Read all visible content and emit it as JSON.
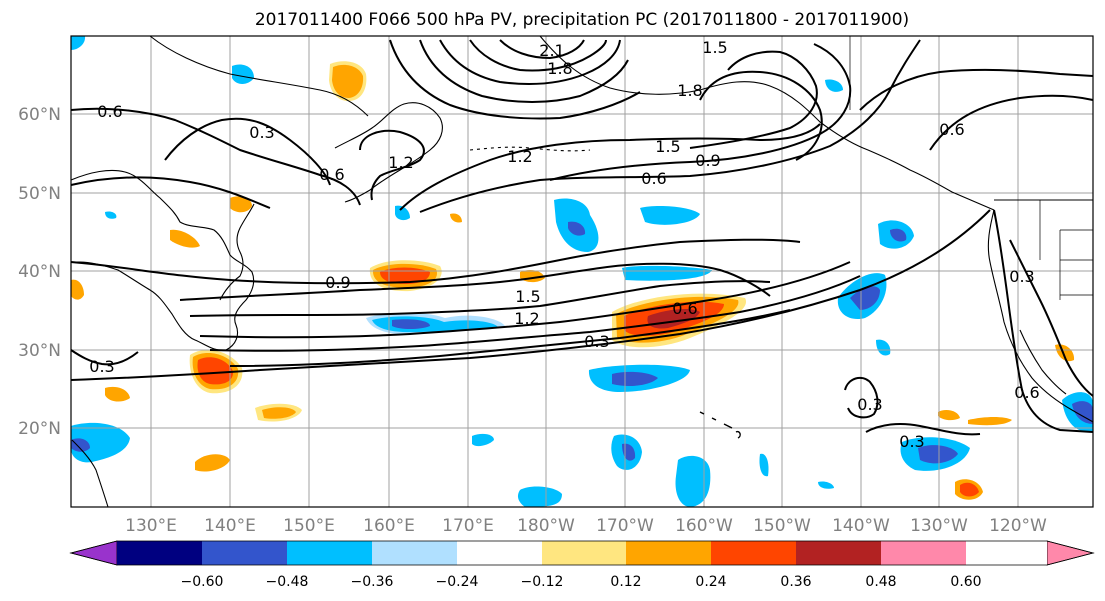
{
  "title": "2017011400 F066 500 hPa PV, precipitation PC (2017011800 - 2017011900)",
  "map": {
    "lat_labels": [
      "60°N",
      "50°N",
      "40°N",
      "30°N",
      "20°N"
    ],
    "lon_labels": [
      "130°E",
      "140°E",
      "150°E",
      "160°E",
      "170°E",
      "180°W",
      "170°W",
      "160°W",
      "150°W",
      "140°W",
      "130°W",
      "120°W"
    ],
    "contour_labels": [
      "0.6",
      "0.3",
      "0.6",
      "1.2",
      "2.1",
      "1.8",
      "1.5",
      "1.8",
      "1.2",
      "1.5",
      "0.9",
      "0.6",
      "0.6",
      "0.9",
      "1.5",
      "1.2",
      "0.3",
      "0.6",
      "0.3",
      "0.3",
      "0.3",
      "0.3",
      "0.6"
    ]
  },
  "colorbar": {
    "ticks": [
      "−0.60",
      "−0.48",
      "−0.36",
      "−0.24",
      "−0.12",
      "0.12",
      "0.24",
      "0.36",
      "0.48",
      "0.60"
    ],
    "colors": [
      "#9933cc",
      "#000080",
      "#3355cc",
      "#00bfff",
      "#b0e0ff",
      "#ffffff",
      "#ffe680",
      "#ffa500",
      "#ff4500",
      "#b22222",
      "#ff88aa"
    ]
  },
  "colors": {
    "grid": "#a0a0a0",
    "contour": "#000000",
    "coast": "#000000"
  }
}
